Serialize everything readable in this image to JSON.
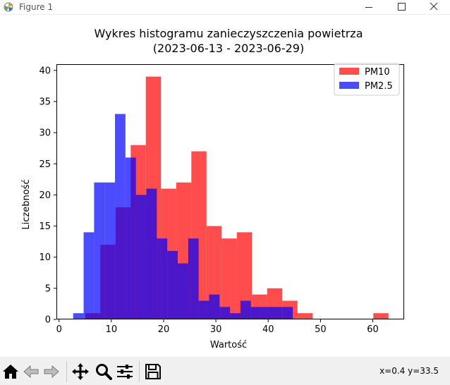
{
  "window": {
    "title": "Figure 1",
    "minimize_icon": "minimize-icon",
    "maximize_icon": "maximize-icon",
    "close_icon": "close-icon"
  },
  "toolbar": {
    "buttons": [
      {
        "name": "home-button",
        "icon": "home-icon"
      },
      {
        "name": "back-button",
        "icon": "arrow-left-icon"
      },
      {
        "name": "forward-button",
        "icon": "arrow-right-icon"
      },
      {
        "name": "pan-button",
        "icon": "move-icon"
      },
      {
        "name": "zoom-button",
        "icon": "magnifier-icon"
      },
      {
        "name": "configure-subplots-button",
        "icon": "sliders-icon"
      },
      {
        "name": "save-button",
        "icon": "floppy-disk-icon"
      }
    ],
    "coords": "x=0.4 y=33.5"
  },
  "chart_data": {
    "type": "bar",
    "subtype": "overlapping-histogram",
    "title_lines": [
      "Wykres histogramu zanieczyszczenia powietrza",
      "(2023-06-13 - 2023-06-29)"
    ],
    "xlabel": "Wartość",
    "ylabel": "Liczebność",
    "xlim": [
      -0.5,
      66
    ],
    "ylim": [
      0,
      41
    ],
    "xticks": [
      0,
      10,
      20,
      30,
      40,
      50,
      60
    ],
    "yticks": [
      0,
      5,
      10,
      15,
      20,
      25,
      30,
      35,
      40
    ],
    "grid": false,
    "legend_position": "top-right",
    "series": [
      {
        "name": "PM10",
        "color": "#ff0000",
        "opacity": 0.7,
        "bin_edges": [
          5.0,
          7.9,
          10.8,
          13.7,
          16.6,
          19.5,
          22.4,
          25.3,
          28.2,
          31.1,
          34.0,
          36.9,
          39.8,
          42.7,
          45.6,
          48.5,
          51.4,
          54.3,
          57.2,
          60.1,
          63.0
        ],
        "counts": [
          1,
          12,
          18,
          28,
          39,
          21,
          22,
          27,
          15,
          13,
          14,
          4,
          5,
          3,
          1,
          0,
          0,
          0,
          0,
          1
        ]
      },
      {
        "name": "PM2.5",
        "color": "#0000ff",
        "opacity": 0.7,
        "bin_edges": [
          2.7,
          4.7,
          6.7,
          8.7,
          10.7,
          12.7,
          14.7,
          16.7,
          18.7,
          20.7,
          22.7,
          24.7,
          26.7,
          28.7,
          30.7,
          32.7,
          34.7,
          36.7,
          38.7,
          40.7,
          42.7,
          44.7
        ],
        "counts": [
          1,
          14,
          22,
          22,
          33,
          26,
          20,
          21,
          13,
          11,
          9,
          13,
          3,
          4,
          2,
          1,
          3,
          2,
          2,
          2,
          2
        ]
      }
    ]
  }
}
